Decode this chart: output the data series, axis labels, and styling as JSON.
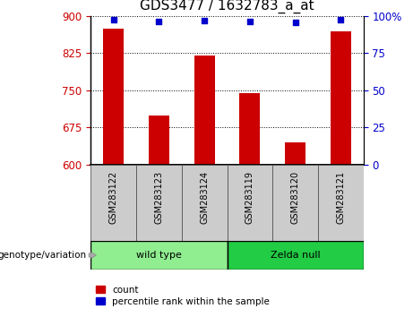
{
  "title": "GDS3477 / 1632783_a_at",
  "categories": [
    "GSM283122",
    "GSM283123",
    "GSM283124",
    "GSM283119",
    "GSM283120",
    "GSM283121"
  ],
  "bar_values": [
    875,
    700,
    820,
    745,
    645,
    868
  ],
  "percentile_values": [
    97.5,
    96.5,
    97.0,
    96.5,
    95.5,
    97.2
  ],
  "bar_color": "#cc0000",
  "dot_color": "#0000cc",
  "ylim_left": [
    600,
    900
  ],
  "ylim_right": [
    0,
    100
  ],
  "yticks_left": [
    600,
    675,
    750,
    825,
    900
  ],
  "yticks_right": [
    0,
    25,
    50,
    75,
    100
  ],
  "groups": [
    {
      "label": "wild type",
      "indices": [
        0,
        1,
        2
      ],
      "color": "#90ee90"
    },
    {
      "label": "Zelda null",
      "indices": [
        3,
        4,
        5
      ],
      "color": "#22cc44"
    }
  ],
  "group_label_prefix": "genotype/variation",
  "legend_count_label": "count",
  "legend_percentile_label": "percentile rank within the sample",
  "bar_width": 0.45,
  "tick_label_color_left": "#cc0000",
  "tick_label_color_right": "#0000cc",
  "plot_bg_color": "#ffffff",
  "fig_bg_color": "#ffffff",
  "xticklabel_area_color": "#cccccc",
  "title_fontsize": 11,
  "tick_fontsize": 8.5
}
